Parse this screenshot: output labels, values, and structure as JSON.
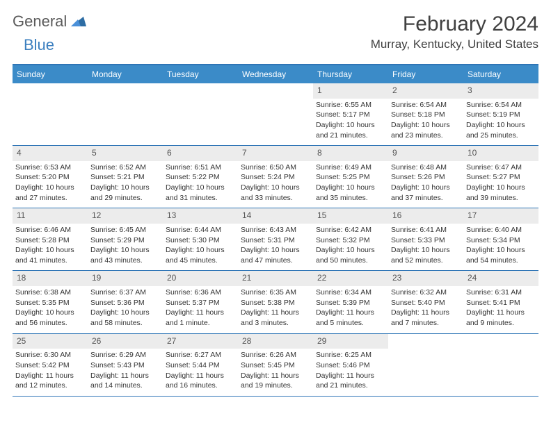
{
  "brand": {
    "part1": "General",
    "part2": "Blue"
  },
  "title": "February 2024",
  "location": "Murray, Kentucky, United States",
  "colors": {
    "header_bg": "#3b8bc8",
    "divider": "#2e75b6",
    "daynum_bg": "#ececec",
    "logo_blue": "#3b7fbf",
    "logo_gray": "#5a5a5a"
  },
  "weekdays": [
    "Sunday",
    "Monday",
    "Tuesday",
    "Wednesday",
    "Thursday",
    "Friday",
    "Saturday"
  ],
  "weeks": [
    [
      {
        "empty": true
      },
      {
        "empty": true
      },
      {
        "empty": true
      },
      {
        "empty": true
      },
      {
        "day": "1",
        "sunrise": "Sunrise: 6:55 AM",
        "sunset": "Sunset: 5:17 PM",
        "daylight1": "Daylight: 10 hours",
        "daylight2": "and 21 minutes."
      },
      {
        "day": "2",
        "sunrise": "Sunrise: 6:54 AM",
        "sunset": "Sunset: 5:18 PM",
        "daylight1": "Daylight: 10 hours",
        "daylight2": "and 23 minutes."
      },
      {
        "day": "3",
        "sunrise": "Sunrise: 6:54 AM",
        "sunset": "Sunset: 5:19 PM",
        "daylight1": "Daylight: 10 hours",
        "daylight2": "and 25 minutes."
      }
    ],
    [
      {
        "day": "4",
        "sunrise": "Sunrise: 6:53 AM",
        "sunset": "Sunset: 5:20 PM",
        "daylight1": "Daylight: 10 hours",
        "daylight2": "and 27 minutes."
      },
      {
        "day": "5",
        "sunrise": "Sunrise: 6:52 AM",
        "sunset": "Sunset: 5:21 PM",
        "daylight1": "Daylight: 10 hours",
        "daylight2": "and 29 minutes."
      },
      {
        "day": "6",
        "sunrise": "Sunrise: 6:51 AM",
        "sunset": "Sunset: 5:22 PM",
        "daylight1": "Daylight: 10 hours",
        "daylight2": "and 31 minutes."
      },
      {
        "day": "7",
        "sunrise": "Sunrise: 6:50 AM",
        "sunset": "Sunset: 5:24 PM",
        "daylight1": "Daylight: 10 hours",
        "daylight2": "and 33 minutes."
      },
      {
        "day": "8",
        "sunrise": "Sunrise: 6:49 AM",
        "sunset": "Sunset: 5:25 PM",
        "daylight1": "Daylight: 10 hours",
        "daylight2": "and 35 minutes."
      },
      {
        "day": "9",
        "sunrise": "Sunrise: 6:48 AM",
        "sunset": "Sunset: 5:26 PM",
        "daylight1": "Daylight: 10 hours",
        "daylight2": "and 37 minutes."
      },
      {
        "day": "10",
        "sunrise": "Sunrise: 6:47 AM",
        "sunset": "Sunset: 5:27 PM",
        "daylight1": "Daylight: 10 hours",
        "daylight2": "and 39 minutes."
      }
    ],
    [
      {
        "day": "11",
        "sunrise": "Sunrise: 6:46 AM",
        "sunset": "Sunset: 5:28 PM",
        "daylight1": "Daylight: 10 hours",
        "daylight2": "and 41 minutes."
      },
      {
        "day": "12",
        "sunrise": "Sunrise: 6:45 AM",
        "sunset": "Sunset: 5:29 PM",
        "daylight1": "Daylight: 10 hours",
        "daylight2": "and 43 minutes."
      },
      {
        "day": "13",
        "sunrise": "Sunrise: 6:44 AM",
        "sunset": "Sunset: 5:30 PM",
        "daylight1": "Daylight: 10 hours",
        "daylight2": "and 45 minutes."
      },
      {
        "day": "14",
        "sunrise": "Sunrise: 6:43 AM",
        "sunset": "Sunset: 5:31 PM",
        "daylight1": "Daylight: 10 hours",
        "daylight2": "and 47 minutes."
      },
      {
        "day": "15",
        "sunrise": "Sunrise: 6:42 AM",
        "sunset": "Sunset: 5:32 PM",
        "daylight1": "Daylight: 10 hours",
        "daylight2": "and 50 minutes."
      },
      {
        "day": "16",
        "sunrise": "Sunrise: 6:41 AM",
        "sunset": "Sunset: 5:33 PM",
        "daylight1": "Daylight: 10 hours",
        "daylight2": "and 52 minutes."
      },
      {
        "day": "17",
        "sunrise": "Sunrise: 6:40 AM",
        "sunset": "Sunset: 5:34 PM",
        "daylight1": "Daylight: 10 hours",
        "daylight2": "and 54 minutes."
      }
    ],
    [
      {
        "day": "18",
        "sunrise": "Sunrise: 6:38 AM",
        "sunset": "Sunset: 5:35 PM",
        "daylight1": "Daylight: 10 hours",
        "daylight2": "and 56 minutes."
      },
      {
        "day": "19",
        "sunrise": "Sunrise: 6:37 AM",
        "sunset": "Sunset: 5:36 PM",
        "daylight1": "Daylight: 10 hours",
        "daylight2": "and 58 minutes."
      },
      {
        "day": "20",
        "sunrise": "Sunrise: 6:36 AM",
        "sunset": "Sunset: 5:37 PM",
        "daylight1": "Daylight: 11 hours",
        "daylight2": "and 1 minute."
      },
      {
        "day": "21",
        "sunrise": "Sunrise: 6:35 AM",
        "sunset": "Sunset: 5:38 PM",
        "daylight1": "Daylight: 11 hours",
        "daylight2": "and 3 minutes."
      },
      {
        "day": "22",
        "sunrise": "Sunrise: 6:34 AM",
        "sunset": "Sunset: 5:39 PM",
        "daylight1": "Daylight: 11 hours",
        "daylight2": "and 5 minutes."
      },
      {
        "day": "23",
        "sunrise": "Sunrise: 6:32 AM",
        "sunset": "Sunset: 5:40 PM",
        "daylight1": "Daylight: 11 hours",
        "daylight2": "and 7 minutes."
      },
      {
        "day": "24",
        "sunrise": "Sunrise: 6:31 AM",
        "sunset": "Sunset: 5:41 PM",
        "daylight1": "Daylight: 11 hours",
        "daylight2": "and 9 minutes."
      }
    ],
    [
      {
        "day": "25",
        "sunrise": "Sunrise: 6:30 AM",
        "sunset": "Sunset: 5:42 PM",
        "daylight1": "Daylight: 11 hours",
        "daylight2": "and 12 minutes."
      },
      {
        "day": "26",
        "sunrise": "Sunrise: 6:29 AM",
        "sunset": "Sunset: 5:43 PM",
        "daylight1": "Daylight: 11 hours",
        "daylight2": "and 14 minutes."
      },
      {
        "day": "27",
        "sunrise": "Sunrise: 6:27 AM",
        "sunset": "Sunset: 5:44 PM",
        "daylight1": "Daylight: 11 hours",
        "daylight2": "and 16 minutes."
      },
      {
        "day": "28",
        "sunrise": "Sunrise: 6:26 AM",
        "sunset": "Sunset: 5:45 PM",
        "daylight1": "Daylight: 11 hours",
        "daylight2": "and 19 minutes."
      },
      {
        "day": "29",
        "sunrise": "Sunrise: 6:25 AM",
        "sunset": "Sunset: 5:46 PM",
        "daylight1": "Daylight: 11 hours",
        "daylight2": "and 21 minutes."
      },
      {
        "empty": true
      },
      {
        "empty": true
      }
    ]
  ]
}
